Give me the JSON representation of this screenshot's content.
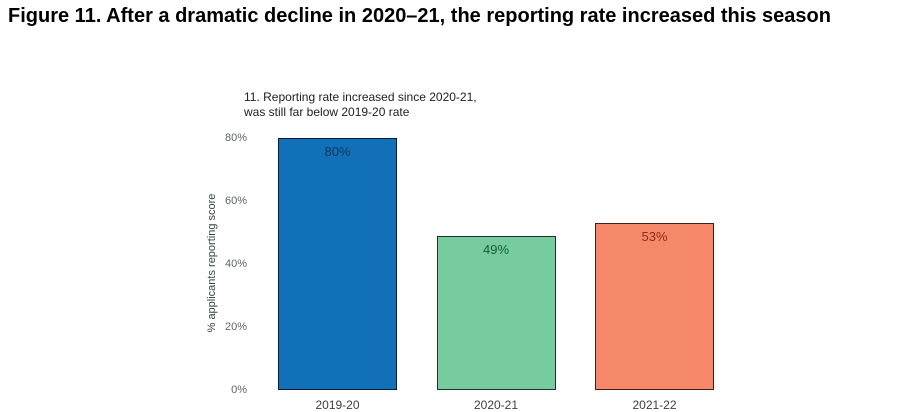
{
  "figure": {
    "title": "Figure 11. After a dramatic decline in 2020–21, the reporting rate increased this season"
  },
  "chart_data": {
    "type": "bar",
    "title": "11. Reporting rate increased since 2020-21,\nwas still far below 2019-20 rate",
    "categories": [
      "2019-20",
      "2020-21",
      "2021-22"
    ],
    "values": [
      80,
      49,
      53
    ],
    "value_labels": [
      "80%",
      "49%",
      "53%"
    ],
    "bar_colors": [
      "#1170b8",
      "#76cc9f",
      "#f6886a"
    ],
    "value_label_colors": [
      "#14365d",
      "#175c37",
      "#8a2d12"
    ],
    "bar_border_color": "rgba(0,0,0,0.75)",
    "xlabel": "",
    "ylabel": "% applicants reporting score",
    "ylim": [
      0,
      80
    ],
    "yticks": [
      "0%",
      "20%",
      "40%",
      "60%",
      "80%"
    ],
    "ytick_values": [
      0,
      20,
      40,
      60,
      80
    ],
    "grid": false,
    "legend": "none",
    "background": "#ffffff"
  }
}
